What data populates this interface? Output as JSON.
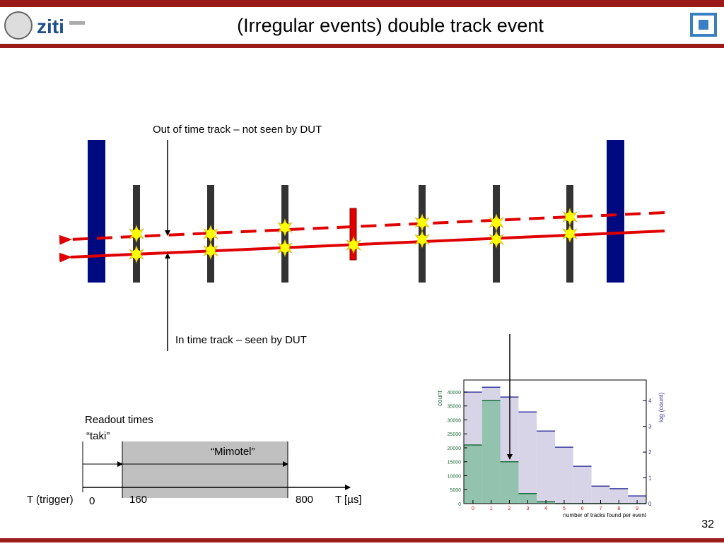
{
  "header": {
    "logo_text": "ziti",
    "title": "(Irregular events) double track event"
  },
  "annotations": {
    "out_of_time": "Out of time track – not seen by DUT",
    "in_time": "In time track – seen by DUT"
  },
  "timeline": {
    "readout_times": "Readout times",
    "taki": "“taki”",
    "mimotel": "“Mimotel”",
    "trigger": "T (trigger)",
    "t0": "0",
    "t160": "160",
    "t800": "800",
    "unit": "T [µs]"
  },
  "histogram": {
    "type": "histogram",
    "y_label": "count",
    "y2_label": "log (count)",
    "x_label": "number of tracks found per event",
    "bins": [
      -0.5,
      0.5,
      1.5,
      2.5,
      3.5,
      4.5,
      5.5,
      6.5,
      7.5,
      8.5,
      9.5
    ],
    "xlim": [
      -0.5,
      9.5
    ],
    "xticks": [
      0,
      1,
      2,
      3,
      4,
      5,
      6,
      7,
      8,
      9
    ],
    "ylim": [
      0,
      44300
    ],
    "yticks": [
      0,
      5000,
      10000,
      15000,
      20000,
      25000,
      30000,
      35000,
      40000
    ],
    "y2lim": [
      0,
      4.8
    ],
    "y2ticks": [
      0,
      1,
      2,
      3,
      4
    ],
    "series": [
      {
        "color": "#8fc2ac",
        "values": [
          21000,
          37000,
          15000,
          3600,
          660,
          0,
          0,
          0,
          0,
          0
        ]
      },
      {
        "color": "#d7d4e7",
        "axis": "y2",
        "values": [
          4.33,
          4.52,
          4.14,
          3.56,
          2.82,
          2.19,
          1.45,
          0.68,
          0.58,
          0.3
        ]
      }
    ]
  },
  "footer": {
    "page": "32"
  }
}
